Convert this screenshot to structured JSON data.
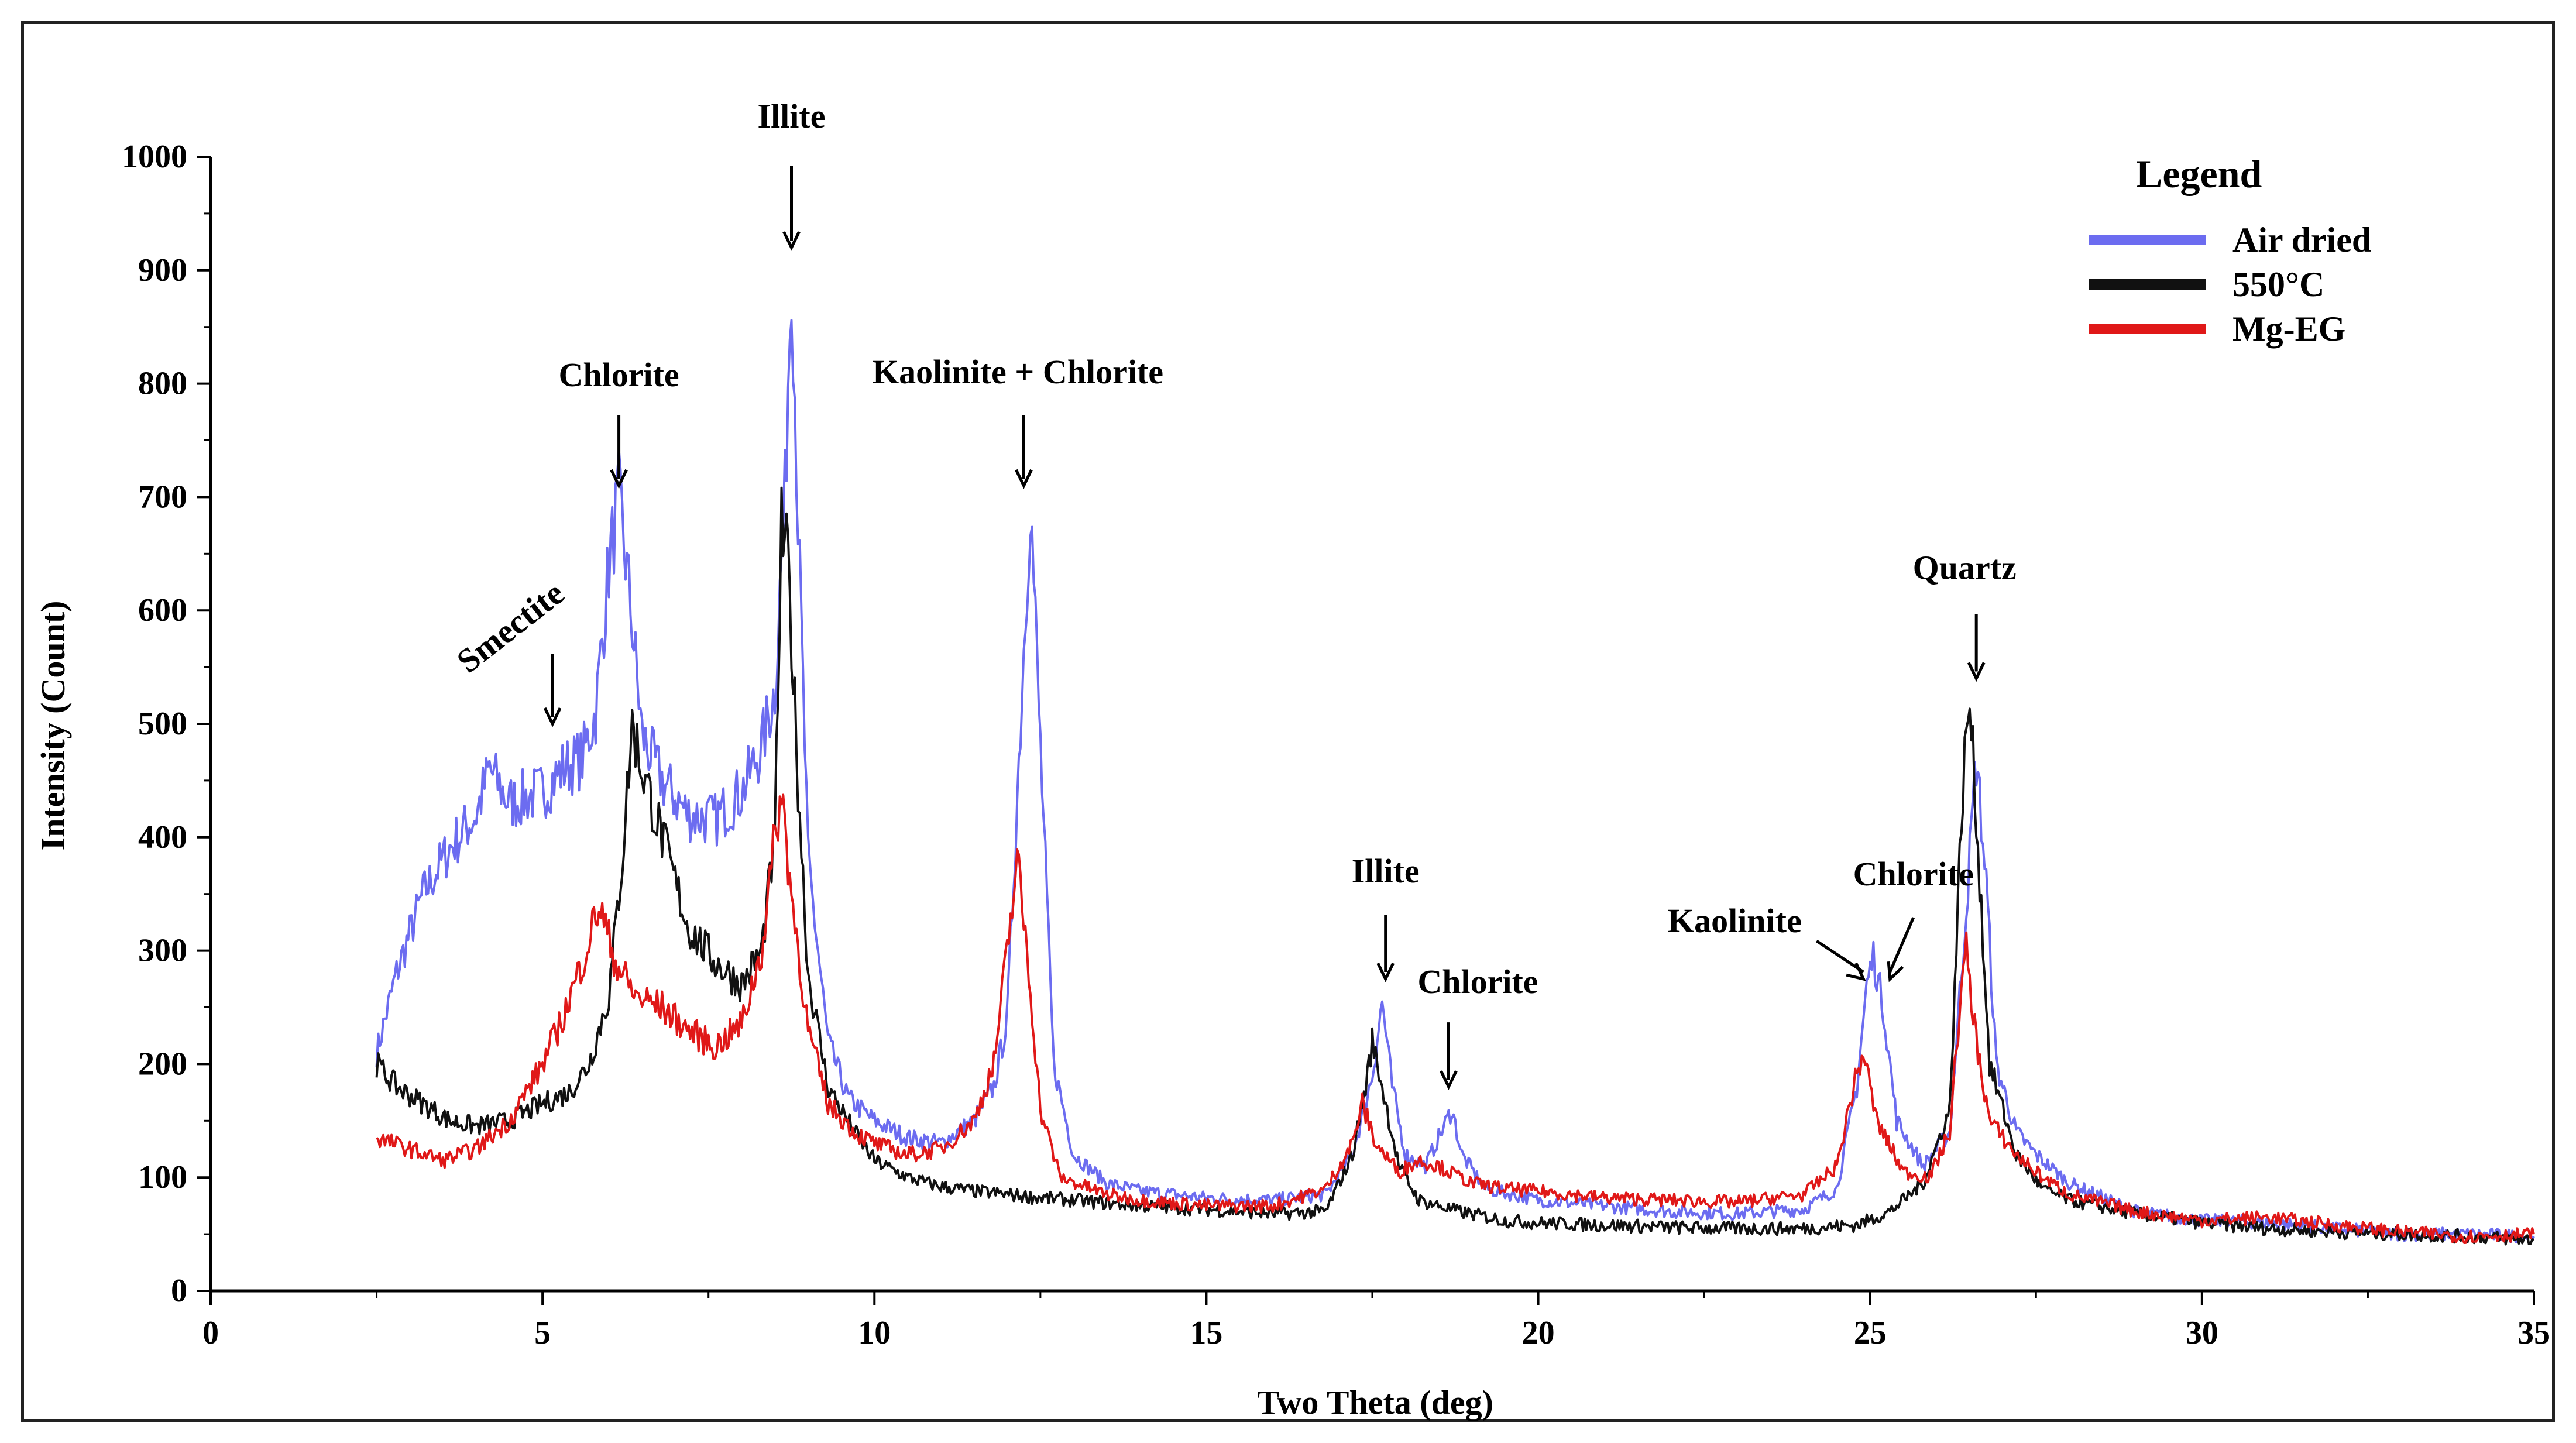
{
  "chart_data": {
    "type": "line",
    "title": "",
    "xlabel": "Two Theta (deg)",
    "ylabel": "Intensity (Count)",
    "xlim": [
      0,
      35
    ],
    "ylim": [
      0,
      1000
    ],
    "xticks": [
      0,
      5,
      10,
      15,
      20,
      25,
      30,
      35
    ],
    "yticks": [
      0,
      100,
      200,
      300,
      400,
      500,
      600,
      700,
      800,
      900,
      1000
    ],
    "grid": false,
    "legend": {
      "title": "Legend",
      "position": "top-right"
    },
    "series": [
      {
        "name": "Air dried",
        "color": "#6c6cf0",
        "points": [
          [
            2.5,
            210
          ],
          [
            2.8,
            280
          ],
          [
            3.2,
            350
          ],
          [
            3.6,
            390
          ],
          [
            4.0,
            420
          ],
          [
            4.2,
            460
          ],
          [
            4.5,
            430
          ],
          [
            5.0,
            440
          ],
          [
            5.3,
            460
          ],
          [
            5.6,
            470
          ],
          [
            5.8,
            510
          ],
          [
            6.0,
            640
          ],
          [
            6.15,
            700
          ],
          [
            6.3,
            620
          ],
          [
            6.5,
            490
          ],
          [
            6.8,
            450
          ],
          [
            7.2,
            420
          ],
          [
            7.6,
            415
          ],
          [
            8.0,
            440
          ],
          [
            8.3,
            480
          ],
          [
            8.5,
            530
          ],
          [
            8.65,
            700
          ],
          [
            8.75,
            910
          ],
          [
            8.85,
            680
          ],
          [
            9.0,
            380
          ],
          [
            9.3,
            220
          ],
          [
            9.6,
            170
          ],
          [
            10.0,
            150
          ],
          [
            10.5,
            135
          ],
          [
            11.0,
            130
          ],
          [
            11.5,
            150
          ],
          [
            11.8,
            180
          ],
          [
            12.0,
            240
          ],
          [
            12.2,
            500
          ],
          [
            12.35,
            700
          ],
          [
            12.5,
            480
          ],
          [
            12.7,
            200
          ],
          [
            13.0,
            120
          ],
          [
            13.5,
            95
          ],
          [
            14.0,
            88
          ],
          [
            15.0,
            82
          ],
          [
            16.0,
            80
          ],
          [
            16.8,
            85
          ],
          [
            17.2,
            120
          ],
          [
            17.5,
            190
          ],
          [
            17.65,
            255
          ],
          [
            17.8,
            180
          ],
          [
            18.0,
            120
          ],
          [
            18.3,
            110
          ],
          [
            18.5,
            135
          ],
          [
            18.7,
            160
          ],
          [
            18.85,
            120
          ],
          [
            19.2,
            90
          ],
          [
            20.0,
            80
          ],
          [
            21.0,
            75
          ],
          [
            22.0,
            70
          ],
          [
            23.0,
            68
          ],
          [
            24.0,
            72
          ],
          [
            24.5,
            90
          ],
          [
            24.8,
            180
          ],
          [
            24.95,
            270
          ],
          [
            25.05,
            295
          ],
          [
            25.2,
            250
          ],
          [
            25.4,
            150
          ],
          [
            25.8,
            110
          ],
          [
            26.2,
            140
          ],
          [
            26.45,
            340
          ],
          [
            26.6,
            470
          ],
          [
            26.75,
            360
          ],
          [
            26.9,
            200
          ],
          [
            27.2,
            140
          ],
          [
            27.5,
            120
          ],
          [
            28.0,
            95
          ],
          [
            29.0,
            70
          ],
          [
            30.0,
            62
          ],
          [
            31.0,
            60
          ],
          [
            32.0,
            55
          ],
          [
            33.0,
            50
          ],
          [
            34.0,
            50
          ],
          [
            35.0,
            48
          ]
        ]
      },
      {
        "name": "550°C",
        "color": "#111111",
        "points": [
          [
            2.5,
            200
          ],
          [
            2.8,
            180
          ],
          [
            3.2,
            165
          ],
          [
            3.6,
            150
          ],
          [
            4.0,
            145
          ],
          [
            4.5,
            150
          ],
          [
            5.0,
            165
          ],
          [
            5.4,
            175
          ],
          [
            5.7,
            200
          ],
          [
            6.0,
            260
          ],
          [
            6.2,
            380
          ],
          [
            6.35,
            500
          ],
          [
            6.5,
            460
          ],
          [
            6.8,
            400
          ],
          [
            7.2,
            320
          ],
          [
            7.6,
            290
          ],
          [
            8.0,
            270
          ],
          [
            8.3,
            300
          ],
          [
            8.5,
            400
          ],
          [
            8.6,
            670
          ],
          [
            8.7,
            640
          ],
          [
            8.85,
            450
          ],
          [
            9.0,
            280
          ],
          [
            9.3,
            180
          ],
          [
            9.7,
            140
          ],
          [
            10.0,
            115
          ],
          [
            10.5,
            100
          ],
          [
            11.0,
            92
          ],
          [
            11.5,
            88
          ],
          [
            12.0,
            85
          ],
          [
            12.5,
            82
          ],
          [
            13.0,
            80
          ],
          [
            14.0,
            75
          ],
          [
            15.0,
            72
          ],
          [
            16.0,
            68
          ],
          [
            16.8,
            70
          ],
          [
            17.2,
            120
          ],
          [
            17.4,
            180
          ],
          [
            17.5,
            220
          ],
          [
            17.65,
            180
          ],
          [
            17.9,
            110
          ],
          [
            18.2,
            80
          ],
          [
            18.8,
            70
          ],
          [
            19.5,
            62
          ],
          [
            20.0,
            60
          ],
          [
            21.0,
            58
          ],
          [
            22.0,
            56
          ],
          [
            23.0,
            55
          ],
          [
            24.0,
            55
          ],
          [
            24.8,
            58
          ],
          [
            25.3,
            70
          ],
          [
            25.8,
            95
          ],
          [
            26.2,
            160
          ],
          [
            26.4,
            450
          ],
          [
            26.5,
            520
          ],
          [
            26.6,
            420
          ],
          [
            26.8,
            200
          ],
          [
            27.2,
            120
          ],
          [
            27.6,
            90
          ],
          [
            28.0,
            80
          ],
          [
            29.0,
            68
          ],
          [
            30.0,
            60
          ],
          [
            31.0,
            55
          ],
          [
            32.0,
            52
          ],
          [
            33.0,
            50
          ],
          [
            34.0,
            48
          ],
          [
            35.0,
            45
          ]
        ]
      },
      {
        "name": "Mg-EG",
        "color": "#e01818",
        "points": [
          [
            2.5,
            135
          ],
          [
            3.0,
            125
          ],
          [
            3.5,
            115
          ],
          [
            4.0,
            125
          ],
          [
            4.5,
            150
          ],
          [
            5.0,
            200
          ],
          [
            5.3,
            240
          ],
          [
            5.6,
            290
          ],
          [
            5.85,
            340
          ],
          [
            6.1,
            290
          ],
          [
            6.4,
            260
          ],
          [
            6.8,
            250
          ],
          [
            7.2,
            230
          ],
          [
            7.6,
            215
          ],
          [
            8.0,
            235
          ],
          [
            8.3,
            300
          ],
          [
            8.5,
            400
          ],
          [
            8.6,
            440
          ],
          [
            8.75,
            350
          ],
          [
            9.0,
            230
          ],
          [
            9.3,
            165
          ],
          [
            9.7,
            140
          ],
          [
            10.0,
            130
          ],
          [
            10.5,
            120
          ],
          [
            11.0,
            125
          ],
          [
            11.5,
            150
          ],
          [
            11.8,
            200
          ],
          [
            12.0,
            300
          ],
          [
            12.15,
            380
          ],
          [
            12.3,
            300
          ],
          [
            12.5,
            160
          ],
          [
            12.8,
            100
          ],
          [
            13.5,
            85
          ],
          [
            14.0,
            80
          ],
          [
            15.0,
            75
          ],
          [
            16.0,
            75
          ],
          [
            16.8,
            90
          ],
          [
            17.2,
            130
          ],
          [
            17.35,
            165
          ],
          [
            17.55,
            130
          ],
          [
            17.9,
            105
          ],
          [
            18.2,
            115
          ],
          [
            18.5,
            110
          ],
          [
            19.0,
            95
          ],
          [
            19.5,
            90
          ],
          [
            20.0,
            88
          ],
          [
            21.0,
            82
          ],
          [
            22.0,
            80
          ],
          [
            23.0,
            78
          ],
          [
            24.0,
            85
          ],
          [
            24.5,
            110
          ],
          [
            24.75,
            180
          ],
          [
            24.9,
            210
          ],
          [
            25.1,
            150
          ],
          [
            25.5,
            105
          ],
          [
            25.9,
            100
          ],
          [
            26.2,
            140
          ],
          [
            26.35,
            250
          ],
          [
            26.45,
            300
          ],
          [
            26.6,
            220
          ],
          [
            26.8,
            150
          ],
          [
            27.2,
            120
          ],
          [
            27.6,
            100
          ],
          [
            28.0,
            85
          ],
          [
            29.0,
            70
          ],
          [
            30.0,
            62
          ],
          [
            31.0,
            65
          ],
          [
            32.0,
            58
          ],
          [
            33.0,
            52
          ],
          [
            34.0,
            48
          ],
          [
            35.0,
            50
          ]
        ]
      }
    ],
    "annotations": [
      {
        "text": "Smectite",
        "x": 5.15,
        "y": 500,
        "arrow": true
      },
      {
        "text": "Chlorite",
        "x": 6.15,
        "y": 710,
        "arrow": true
      },
      {
        "text": "Illite",
        "x": 8.75,
        "y": 920,
        "arrow": true
      },
      {
        "text": "Kaolinite + Chlorite",
        "x": 12.25,
        "y": 710,
        "arrow": true
      },
      {
        "text": "Illite",
        "x": 17.7,
        "y": 275,
        "arrow": true
      },
      {
        "text": "Chlorite",
        "x": 18.65,
        "y": 180,
        "arrow": true
      },
      {
        "text": "Kaolinite",
        "x": 24.9,
        "y": 275,
        "arrow": true
      },
      {
        "text": "Chlorite",
        "x": 25.3,
        "y": 275,
        "arrow": true
      },
      {
        "text": "Quartz",
        "x": 26.6,
        "y": 540,
        "arrow": true
      }
    ]
  }
}
